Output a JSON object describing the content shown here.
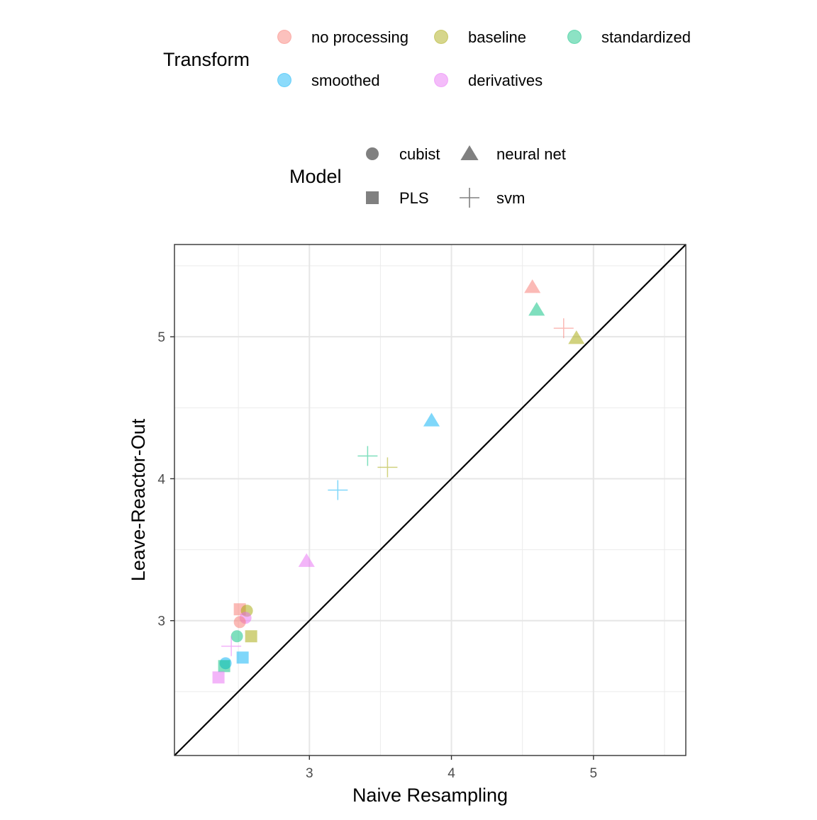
{
  "chart_data": {
    "type": "scatter",
    "title": "",
    "xlabel": "Naive Resampling",
    "ylabel": "Leave-Reactor-Out",
    "xlim": [
      2.05,
      5.65
    ],
    "ylim": [
      2.05,
      5.65
    ],
    "x_ticks": [
      3,
      4,
      5
    ],
    "y_ticks": [
      3,
      4,
      5
    ],
    "x_tick_labels": [
      "3",
      "4",
      "5"
    ],
    "y_tick_labels": [
      "3",
      "4",
      "5"
    ],
    "grid": true,
    "reference_line": {
      "slope": 1,
      "intercept": 0
    },
    "legend_transform": {
      "title": "Transform",
      "position": "top",
      "entries": [
        {
          "key": "no processing",
          "label": "no processing",
          "color": "#F8766D"
        },
        {
          "key": "baseline",
          "label": "baseline",
          "color": "#A3A500"
        },
        {
          "key": "standardized",
          "label": "standardized",
          "color": "#00BF7D"
        },
        {
          "key": "smoothed",
          "label": "smoothed",
          "color": "#00B0F6"
        },
        {
          "key": "derivatives",
          "label": "derivatives",
          "color": "#E76BF3"
        }
      ]
    },
    "legend_model": {
      "title": "Model",
      "position": "top",
      "entries": [
        {
          "key": "cubist",
          "label": "cubist",
          "shape": "circle"
        },
        {
          "key": "neural net",
          "label": "neural net",
          "shape": "triangle"
        },
        {
          "key": "PLS",
          "label": "PLS",
          "shape": "square"
        },
        {
          "key": "svm",
          "label": "svm",
          "shape": "plus"
        }
      ]
    },
    "points": [
      {
        "transform": "no processing",
        "model": "neural net",
        "x": 4.57,
        "y": 5.35
      },
      {
        "transform": "standardized",
        "model": "neural net",
        "x": 4.6,
        "y": 5.19
      },
      {
        "transform": "no processing",
        "model": "svm",
        "x": 4.79,
        "y": 5.06
      },
      {
        "transform": "baseline",
        "model": "neural net",
        "x": 4.88,
        "y": 4.99
      },
      {
        "transform": "smoothed",
        "model": "neural net",
        "x": 3.86,
        "y": 4.41
      },
      {
        "transform": "standardized",
        "model": "svm",
        "x": 3.41,
        "y": 4.16
      },
      {
        "transform": "baseline",
        "model": "svm",
        "x": 3.55,
        "y": 4.08
      },
      {
        "transform": "smoothed",
        "model": "svm",
        "x": 3.2,
        "y": 3.92
      },
      {
        "transform": "derivatives",
        "model": "neural net",
        "x": 2.98,
        "y": 3.42
      },
      {
        "transform": "no processing",
        "model": "PLS",
        "x": 2.51,
        "y": 3.08
      },
      {
        "transform": "baseline",
        "model": "cubist",
        "x": 2.56,
        "y": 3.07
      },
      {
        "transform": "derivatives",
        "model": "cubist",
        "x": 2.55,
        "y": 3.02
      },
      {
        "transform": "no processing",
        "model": "cubist",
        "x": 2.51,
        "y": 2.99
      },
      {
        "transform": "baseline",
        "model": "PLS",
        "x": 2.59,
        "y": 2.89
      },
      {
        "transform": "standardized",
        "model": "cubist",
        "x": 2.49,
        "y": 2.89
      },
      {
        "transform": "derivatives",
        "model": "svm",
        "x": 2.45,
        "y": 2.82
      },
      {
        "transform": "smoothed",
        "model": "PLS",
        "x": 2.53,
        "y": 2.74
      },
      {
        "transform": "smoothed",
        "model": "cubist",
        "x": 2.41,
        "y": 2.7
      },
      {
        "transform": "standardized",
        "model": "PLS",
        "x": 2.4,
        "y": 2.68
      },
      {
        "transform": "derivatives",
        "model": "PLS",
        "x": 2.36,
        "y": 2.6
      }
    ]
  }
}
